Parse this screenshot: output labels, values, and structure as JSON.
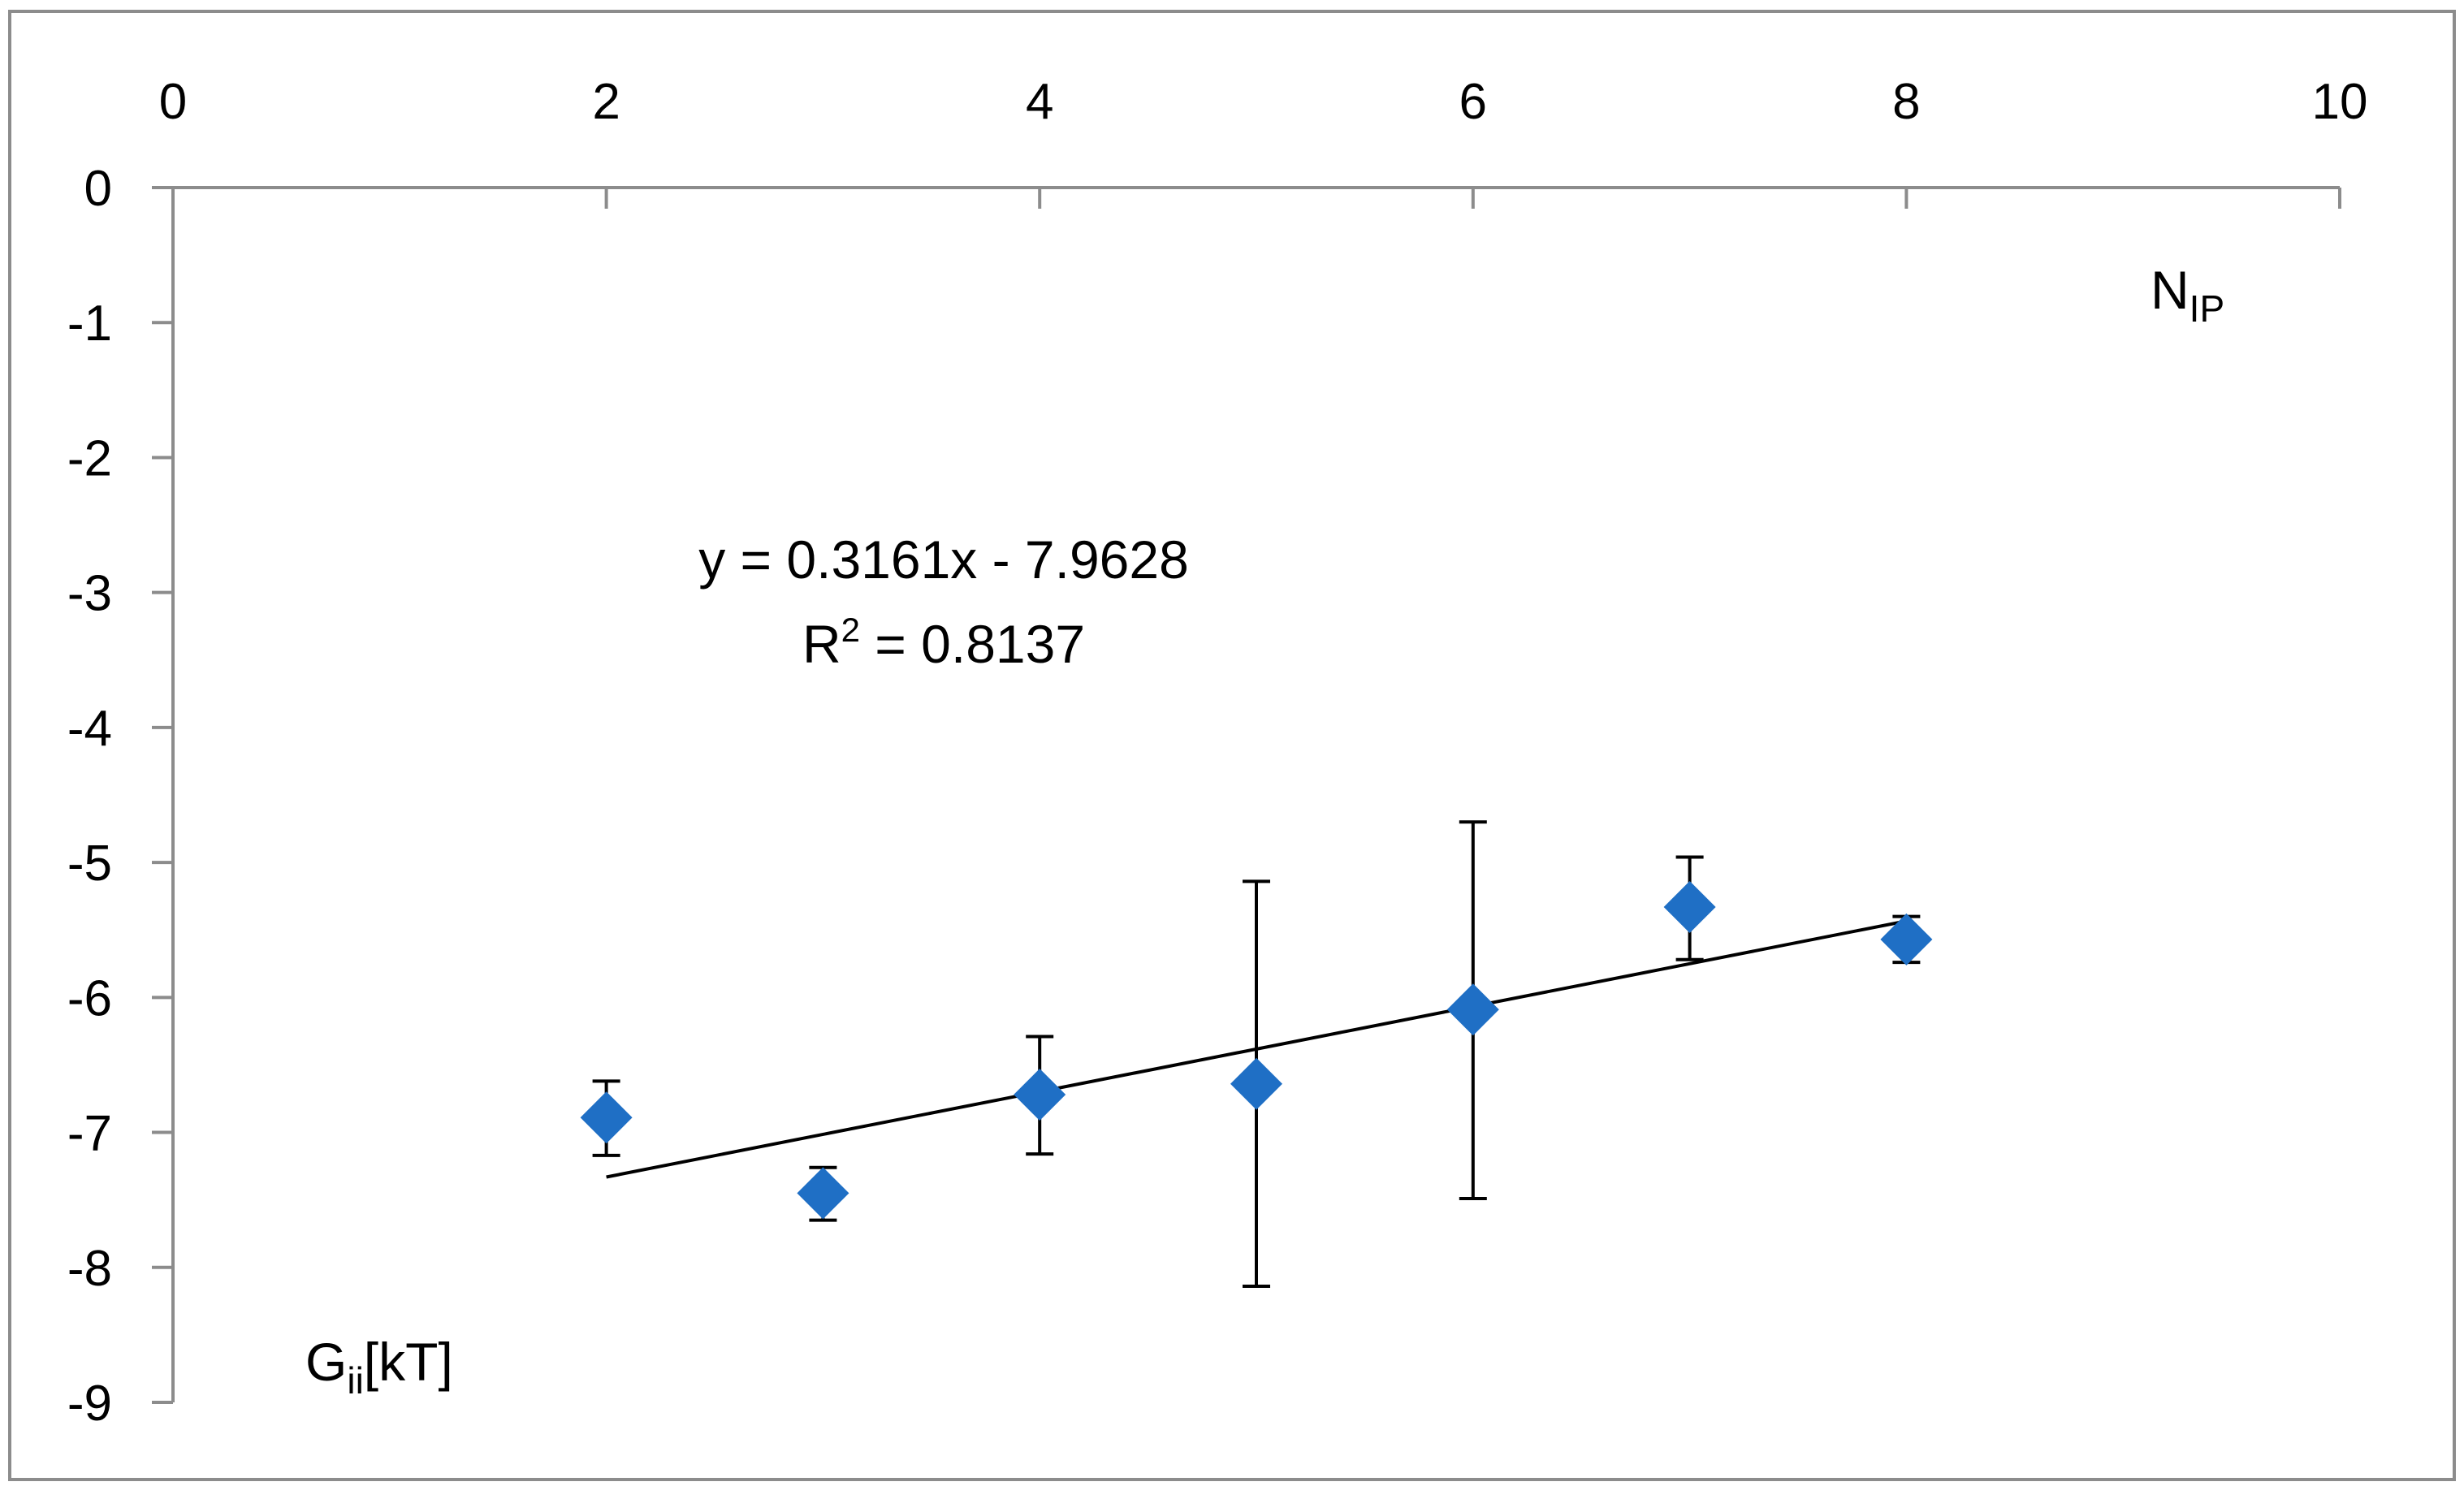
{
  "chart_data": {
    "type": "scatter",
    "x_axis": {
      "label_main": "N",
      "label_sub": "IP",
      "position": "top",
      "range": [
        0,
        10
      ],
      "ticks": [
        0,
        2,
        4,
        6,
        8,
        10
      ],
      "tick_labels": [
        "0",
        "2",
        "4",
        "6",
        "8",
        "10"
      ]
    },
    "y_axis": {
      "label_main": "G",
      "label_sub": "ii",
      "label_suffix": "[kT]",
      "range": [
        -9,
        0
      ],
      "ticks": [
        0,
        -1,
        -2,
        -3,
        -4,
        -5,
        -6,
        -7,
        -8,
        -9
      ],
      "tick_labels": [
        "0",
        "-1",
        "-2",
        "-3",
        "-4",
        "-5",
        "-6",
        "-7",
        "-8",
        "-9"
      ]
    },
    "grid": false,
    "legend": "none",
    "series": [
      {
        "marker": "diamond",
        "color": "#1f6fc5",
        "points": [
          {
            "x": 2,
            "y": -6.89,
            "err_lo": -7.17,
            "err_hi": -6.62
          },
          {
            "x": 3,
            "y": -7.45,
            "err_lo": -7.65,
            "err_hi": -7.26
          },
          {
            "x": 4,
            "y": -6.72,
            "err_lo": -7.16,
            "err_hi": -6.29
          },
          {
            "x": 5,
            "y": -6.64,
            "err_lo": -8.14,
            "err_hi": -5.14
          },
          {
            "x": 6,
            "y": -6.09,
            "err_lo": -7.49,
            "err_hi": -4.7
          },
          {
            "x": 7,
            "y": -5.33,
            "err_lo": -5.72,
            "err_hi": -4.96
          },
          {
            "x": 8,
            "y": -5.57,
            "err_lo": -5.74,
            "err_hi": -5.4
          }
        ]
      }
    ],
    "trendline": {
      "type": "linear",
      "slope": 0.3161,
      "intercept": -7.9628,
      "x_range": [
        2,
        8
      ],
      "color": "#000000"
    },
    "annotation": {
      "equation": "y = 0.3161x - 7.9628",
      "r2_prefix": "R",
      "r2_sup": "2",
      "r2_value": " = 0.8137"
    }
  }
}
